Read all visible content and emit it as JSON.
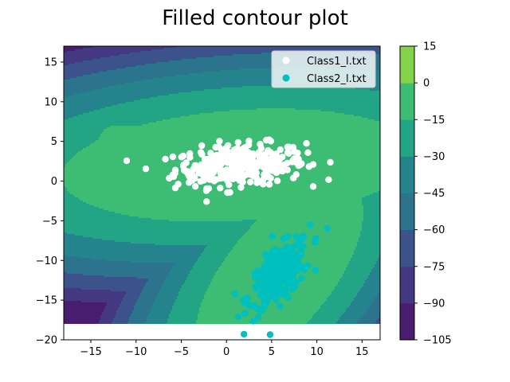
{
  "chart_data": {
    "type": "contour",
    "title": "Filled contour plot",
    "xlim": [
      -18,
      17
    ],
    "ylim": [
      -20,
      17
    ],
    "x_ticks": [
      -15,
      -10,
      -5,
      0,
      5,
      10,
      15
    ],
    "y_ticks": [
      -20,
      -15,
      -10,
      -5,
      0,
      5,
      10,
      15
    ],
    "colorbar": {
      "levels": [
        -105,
        -90,
        -75,
        -60,
        -45,
        -30,
        -15,
        0,
        15
      ],
      "colors": [
        "#481c6e",
        "#453882",
        "#3b528b",
        "#2c738e",
        "#25838e",
        "#21a585",
        "#3dbc74",
        "#84d44b",
        "#dde318"
      ]
    },
    "legend": {
      "position": "top-right",
      "entries": [
        {
          "label": "Class1_l.txt",
          "color": "#ffffff"
        },
        {
          "label": "Class2_l.txt",
          "color": "#00bfbf"
        }
      ]
    },
    "series": [
      {
        "name": "Class1_l.txt",
        "color": "#ffffff",
        "cx": 1.5,
        "cy": 2.0,
        "sx": 3.6,
        "sy": 1.3,
        "rho": 0.2,
        "n": 340
      },
      {
        "name": "Class2_l.txt",
        "color": "#00bfbf",
        "cx": 5.8,
        "cy": -11.8,
        "sx": 1.7,
        "sy": 2.2,
        "rho": 0.65,
        "n": 260
      }
    ]
  }
}
